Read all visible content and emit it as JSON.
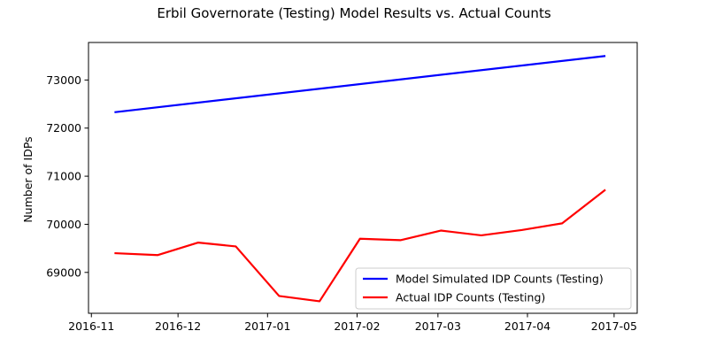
{
  "chart_data": {
    "type": "line",
    "title": "Erbil Governorate (Testing) Model Results vs. Actual Counts",
    "xlabel": "",
    "ylabel": "Number of IDPs",
    "x_axis": {
      "type": "date",
      "xlim": [
        "2016-10-31",
        "2017-05-09"
      ],
      "ticks": [
        "2016-11-01",
        "2016-12-01",
        "2017-01-01",
        "2017-02-01",
        "2017-03-01",
        "2017-04-01",
        "2017-05-01"
      ],
      "tick_labels": [
        "2016-11",
        "2016-12",
        "2017-01",
        "2017-02",
        "2017-03",
        "2017-04",
        "2017-05"
      ]
    },
    "y_axis": {
      "ylim": [
        68150,
        73780
      ],
      "ticks": [
        69000,
        70000,
        71000,
        72000,
        73000
      ],
      "tick_labels": [
        "69000",
        "70000",
        "71000",
        "72000",
        "73000"
      ]
    },
    "grid": false,
    "legend": {
      "placement": "lower-right"
    },
    "series": [
      {
        "name": "Model Simulated IDP Counts (Testing)",
        "color": "#0000ff",
        "points": [
          [
            "2016-11-09",
            72330
          ],
          [
            "2017-04-28",
            73500
          ]
        ]
      },
      {
        "name": "Actual IDP Counts (Testing)",
        "color": "#ff0000",
        "points": [
          [
            "2016-11-09",
            69400
          ],
          [
            "2016-11-24",
            69360
          ],
          [
            "2016-12-08",
            69620
          ],
          [
            "2016-12-21",
            69540
          ],
          [
            "2017-01-05",
            68510
          ],
          [
            "2017-01-19",
            68400
          ],
          [
            "2017-02-02",
            69700
          ],
          [
            "2017-02-16",
            69670
          ],
          [
            "2017-03-02",
            69870
          ],
          [
            "2017-03-16",
            69770
          ],
          [
            "2017-03-30",
            69880
          ],
          [
            "2017-04-13",
            70020
          ],
          [
            "2017-04-28",
            70720
          ]
        ]
      }
    ]
  }
}
